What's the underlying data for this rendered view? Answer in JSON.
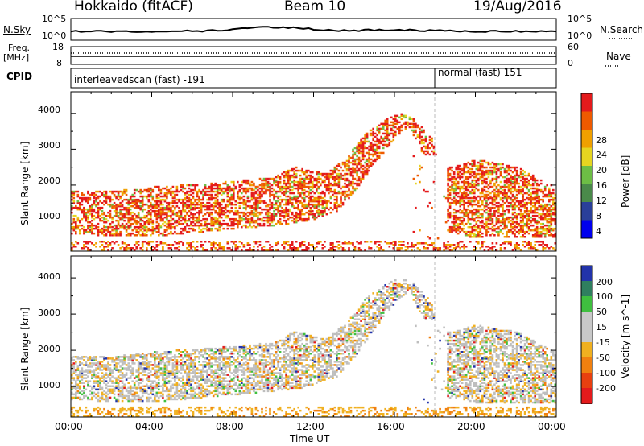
{
  "header": {
    "radar": "Hokkaido (fitACF)",
    "beam": "Beam 10",
    "date": "19/Aug/2016"
  },
  "nsky_panel": {
    "left_label": "N.Sky",
    "right_label": "N.Search",
    "left_ticks": [
      "10^5",
      "10^0"
    ],
    "right_ticks": [
      "10^5",
      "10^0"
    ]
  },
  "freq_panel": {
    "left_label_1": "Freq.",
    "left_label_2": "[MHz]",
    "right_label": "Nave",
    "left_ticks": [
      "18",
      "8"
    ],
    "right_ticks": [
      "60",
      "0"
    ]
  },
  "cpid_panel": {
    "label": "CPID",
    "segments": [
      {
        "text": "interleavedscan (fast) -191",
        "start_h": 0
      },
      {
        "text": "normal (fast) 151",
        "start_h": 18
      }
    ]
  },
  "chart_data": [
    {
      "type": "heatmap",
      "name": "power",
      "ylabel": "Slant Range [km]",
      "yticks": [
        "1000",
        "2000",
        "3000",
        "4000"
      ],
      "ylim": [
        180,
        4580
      ],
      "xlim": [
        0,
        24
      ],
      "colorbar_label": "Power [dB]",
      "colorbar_ticks": [
        "4",
        "8",
        "12",
        "16",
        "20",
        "24",
        "28"
      ],
      "colors": [
        "#0000ee",
        "#2a3f9a",
        "#4a8a4a",
        "#6dbe45",
        "#e6d520",
        "#f0a000",
        "#ee5a00",
        "#e41a1c"
      ],
      "band_lower_km": [
        [
          0,
          600
        ],
        [
          4,
          550
        ],
        [
          8,
          750
        ],
        [
          10,
          850
        ],
        [
          11.5,
          950
        ],
        [
          13,
          1200
        ],
        [
          14,
          1800
        ],
        [
          15,
          2600
        ],
        [
          16,
          3300
        ],
        [
          16.7,
          3600
        ],
        [
          17.2,
          3000
        ],
        [
          18,
          2200
        ],
        [
          18.5,
          700
        ],
        [
          20,
          500
        ],
        [
          22,
          500
        ],
        [
          24,
          500
        ]
      ],
      "band_upper_km": [
        [
          0,
          1800
        ],
        [
          2,
          1800
        ],
        [
          4,
          1950
        ],
        [
          6,
          2000
        ],
        [
          8,
          2100
        ],
        [
          10,
          2200
        ],
        [
          11,
          2500
        ],
        [
          12.5,
          2300
        ],
        [
          13.5,
          2700
        ],
        [
          14.5,
          3400
        ],
        [
          15.5,
          3800
        ],
        [
          16.2,
          4000
        ],
        [
          17,
          3800
        ],
        [
          17.8,
          3300
        ],
        [
          18.2,
          2500
        ],
        [
          19,
          2500
        ],
        [
          20,
          2700
        ],
        [
          22,
          2500
        ],
        [
          24,
          1900
        ]
      ]
    },
    {
      "type": "heatmap",
      "name": "velocity",
      "ylabel": "Slant Range [km]",
      "yticks": [
        "1000",
        "2000",
        "3000",
        "4000"
      ],
      "ylim": [
        180,
        4580
      ],
      "xlim": [
        0,
        24
      ],
      "xlabel": "Time UT",
      "xticks": [
        "00:00",
        "04:00",
        "08:00",
        "12:00",
        "16:00",
        "20:00",
        "00:00"
      ],
      "colorbar_label": "Velocity [m s^-1]",
      "colorbar_ticks": [
        "200",
        "100",
        "50",
        "15",
        "-15",
        "-50",
        "-100",
        "-200"
      ],
      "colors": [
        "#2233aa",
        "#2f7f5f",
        "#3fbf3f",
        "#c8c8c8",
        "#c8c8c8",
        "#f0b020",
        "#f08010",
        "#e84010",
        "#e41a1c"
      ]
    }
  ],
  "colors": {
    "ground_scatter": "#bebebe",
    "axis": "#000000"
  }
}
